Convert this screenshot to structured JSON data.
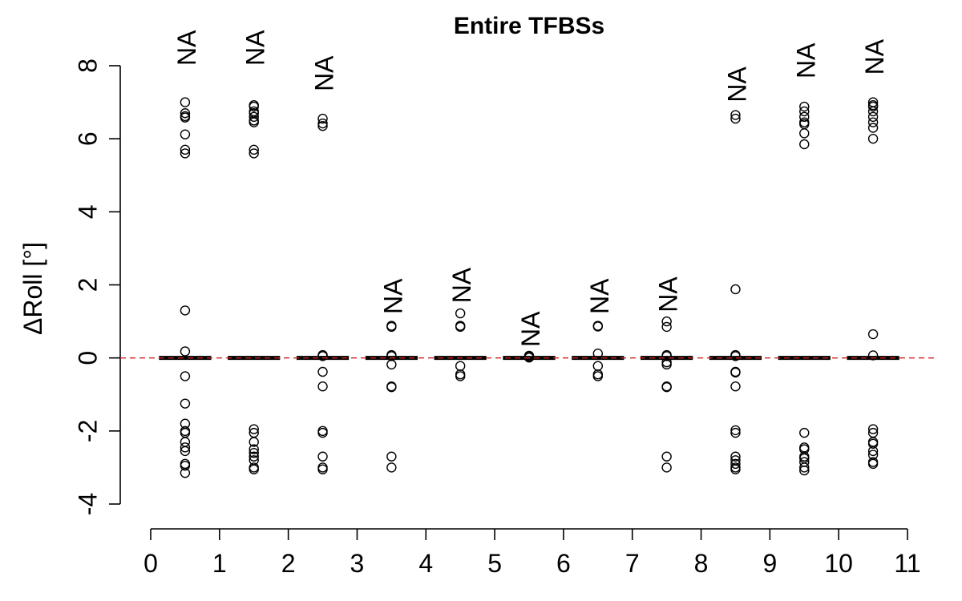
{
  "chart_data": {
    "type": "scatter",
    "title": "Entire TFBSs",
    "ylabel": "ΔRoll [°]",
    "xlabel": "",
    "xlim": [
      0,
      11
    ],
    "ylim": [
      -4,
      8
    ],
    "x_ticks": [
      "0",
      "1",
      "2",
      "3",
      "4",
      "5",
      "6",
      "7",
      "8",
      "9",
      "10",
      "11"
    ],
    "y_ticks": [
      "-4",
      "-2",
      "0",
      "2",
      "4",
      "6",
      "8"
    ],
    "reference_line": {
      "y": 0,
      "color": "#d62020",
      "style": "dashed"
    },
    "groups": [
      {
        "x": 0.5,
        "label": "NA",
        "label_y": 8.0,
        "median": 0,
        "points": [
          7.0,
          6.7,
          6.62,
          6.58,
          6.12,
          5.7,
          5.6,
          1.3,
          0.18,
          -0.5,
          -1.25,
          -1.8,
          -2.0,
          -2.05,
          -2.3,
          -2.45,
          -2.55,
          -2.9,
          -2.95,
          -3.15
        ]
      },
      {
        "x": 1.5,
        "label": "NA",
        "label_y": 8.0,
        "median": 0,
        "points": [
          6.92,
          6.88,
          6.75,
          6.7,
          6.6,
          6.5,
          6.45,
          5.7,
          5.6,
          -1.95,
          -2.05,
          -2.3,
          -2.5,
          -2.6,
          -2.7,
          -2.8,
          -3.0,
          -3.05
        ]
      },
      {
        "x": 2.5,
        "label": "NA",
        "label_y": 7.3,
        "median": 0,
        "points": [
          6.55,
          6.42,
          6.35,
          0.08,
          0.05,
          -0.38,
          -0.78,
          -2.0,
          -2.05,
          -2.7,
          -3.0,
          -3.05
        ]
      },
      {
        "x": 3.5,
        "label": "NA",
        "label_y": 1.2,
        "median": 0,
        "points": [
          0.88,
          0.85,
          0.08,
          0.05,
          -0.18,
          -0.78,
          -0.8,
          -2.7,
          -3.0
        ]
      },
      {
        "x": 4.5,
        "label": "NA",
        "label_y": 1.5,
        "median": 0,
        "points": [
          1.22,
          0.88,
          0.85,
          -0.22,
          -0.45,
          -0.5
        ]
      },
      {
        "x": 5.5,
        "label": "NA",
        "label_y": 0.3,
        "median": 0,
        "points": [
          0.06,
          0.03,
          0.01
        ]
      },
      {
        "x": 6.5,
        "label": "NA",
        "label_y": 1.2,
        "median": 0,
        "points": [
          0.88,
          0.86,
          0.12,
          -0.22,
          -0.45,
          -0.5
        ]
      },
      {
        "x": 7.5,
        "label": "NA",
        "label_y": 1.25,
        "median": 0,
        "points": [
          1.0,
          0.85,
          0.08,
          0.05,
          -0.12,
          -0.18,
          -0.78,
          -0.8,
          -2.7,
          -3.0
        ]
      },
      {
        "x": 8.5,
        "label": "NA",
        "label_y": 7.0,
        "median": 0,
        "points": [
          6.65,
          6.55,
          1.88,
          0.08,
          0.05,
          -0.38,
          -0.4,
          -0.78,
          -1.98,
          -2.05,
          -2.7,
          -2.8,
          -2.9,
          -3.0,
          -3.05
        ]
      },
      {
        "x": 9.5,
        "label": "NA",
        "label_y": 7.65,
        "median": 0,
        "points": [
          6.88,
          6.75,
          6.6,
          6.45,
          6.4,
          6.15,
          5.85,
          -2.05,
          -2.45,
          -2.5,
          -2.7,
          -2.75,
          -2.85,
          -3.0,
          -3.08
        ]
      },
      {
        "x": 10.5,
        "label": "NA",
        "label_y": 7.75,
        "median": 0,
        "points": [
          7.0,
          6.92,
          6.88,
          6.75,
          6.6,
          6.45,
          6.3,
          6.0,
          0.65,
          0.07,
          -1.95,
          -2.05,
          -2.3,
          -2.35,
          -2.55,
          -2.65,
          -2.85,
          -2.9
        ]
      }
    ]
  }
}
